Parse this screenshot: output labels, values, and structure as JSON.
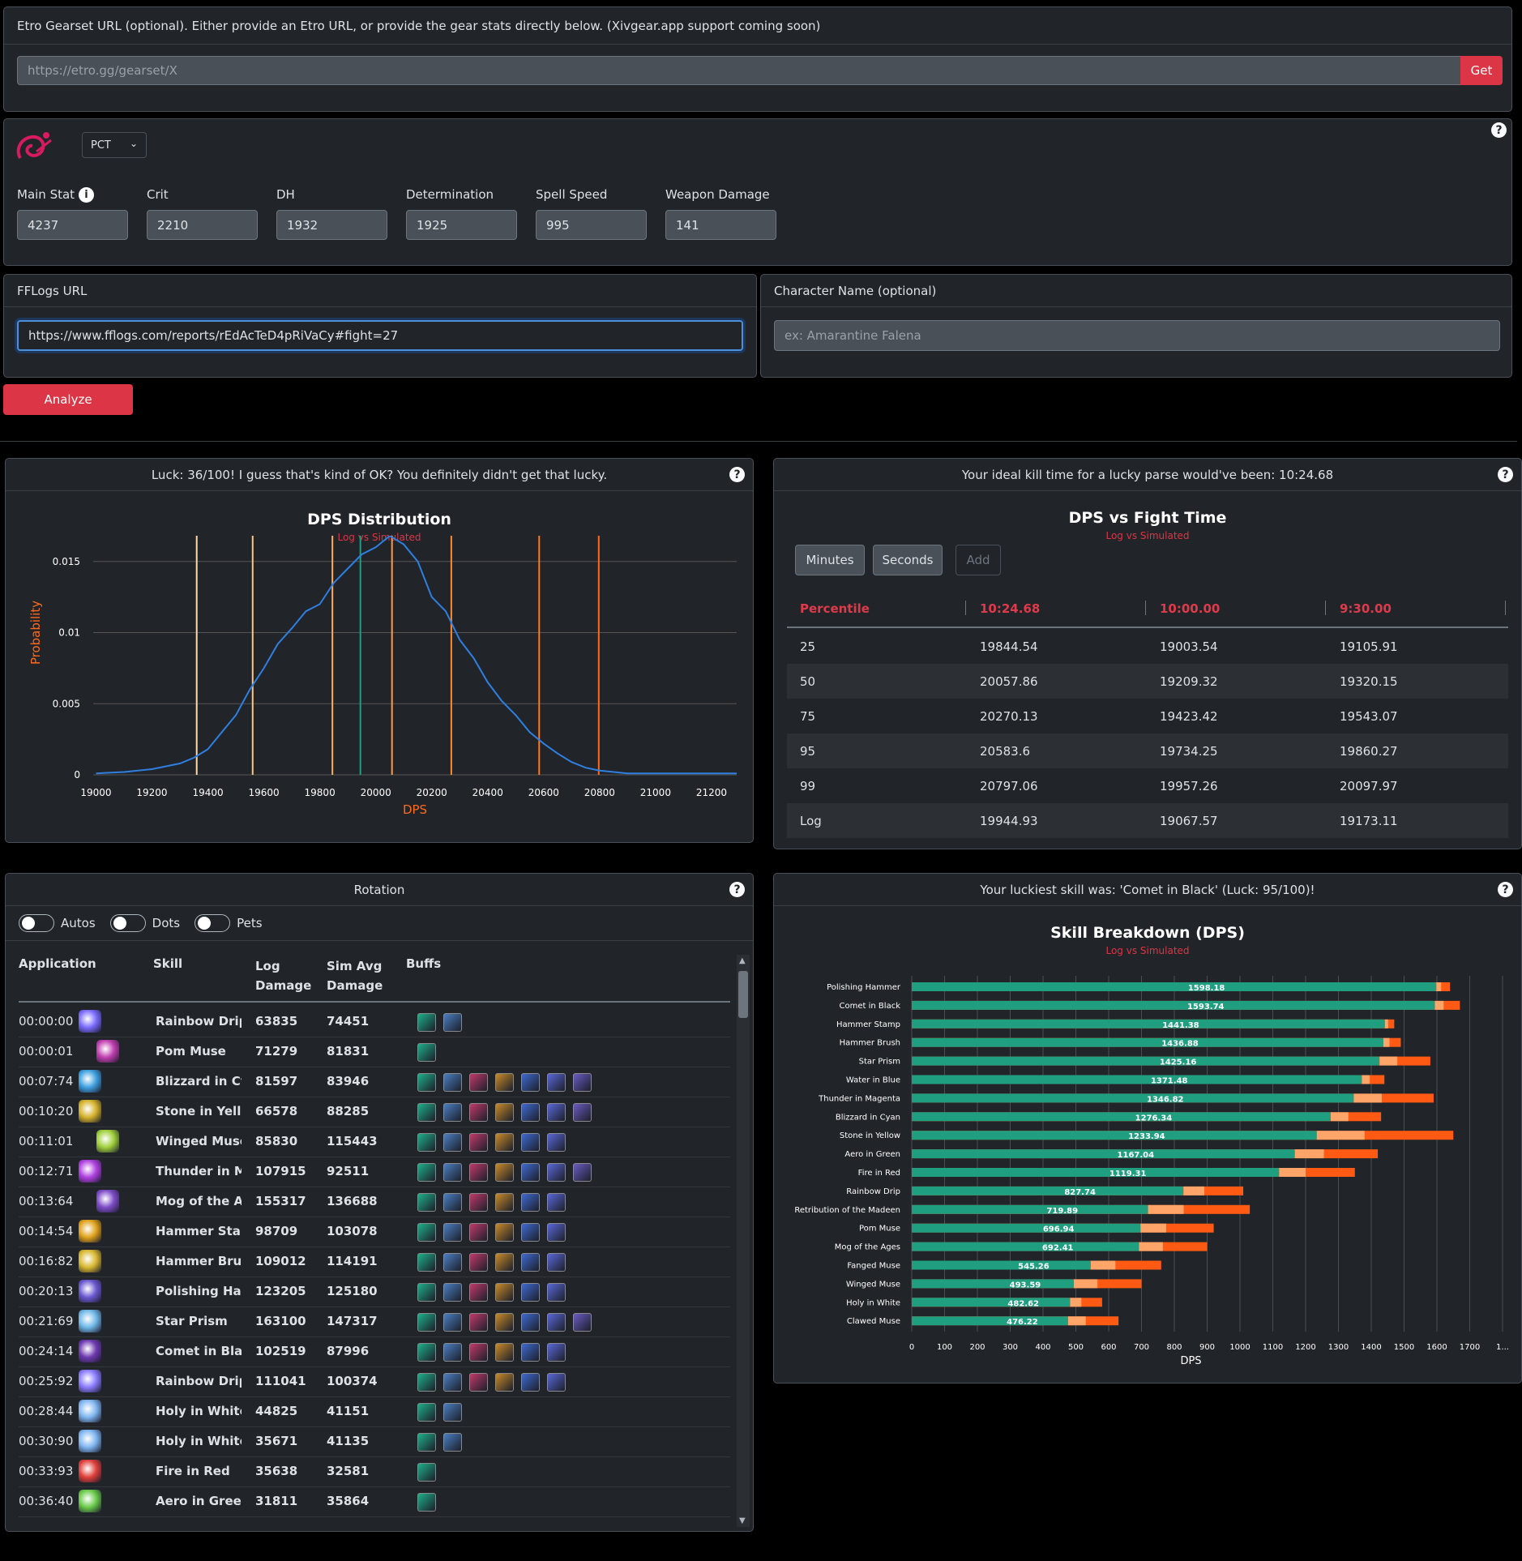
{
  "etro": {
    "label": "Etro Gearset URL (optional). Either provide an Etro URL, or provide the gear stats directly below. (Xivgear.app support coming soon)",
    "placeholder": "https://etro.gg/gearset/X",
    "get_label": "Get"
  },
  "stats": {
    "job": "PCT",
    "fields": [
      {
        "label": "Main Stat",
        "value": "4237"
      },
      {
        "label": "Crit",
        "value": "2210"
      },
      {
        "label": "DH",
        "value": "1932"
      },
      {
        "label": "Determination",
        "value": "1925"
      },
      {
        "label": "Spell Speed",
        "value": "995"
      },
      {
        "label": "Weapon Damage",
        "value": "141"
      }
    ]
  },
  "fflogs": {
    "label": "FFLogs URL",
    "value": "https://www.fflogs.com/reports/rEdAcTeD4pRiVaCy#fight=27"
  },
  "character": {
    "label": "Character Name (optional)",
    "placeholder": "ex: Amarantine Falena"
  },
  "analyze_label": "Analyze",
  "luck_panel": {
    "header": "Luck: 36/100! I guess that's kind of OK? You definitely didn't get that lucky."
  },
  "killtime_panel": {
    "header": "Your ideal kill time for a lucky parse would've been: 10:24.68",
    "title": "DPS vs Fight Time",
    "subtitle": "Log vs Simulated",
    "buttons": [
      "Minutes",
      "Seconds",
      "Add"
    ],
    "columns": [
      "Percentile",
      "10:24.68",
      "10:00.00",
      "9:30.00"
    ],
    "rows": [
      [
        "25",
        "19844.54",
        "19003.54",
        "19105.91"
      ],
      [
        "50",
        "20057.86",
        "19209.32",
        "19320.15"
      ],
      [
        "75",
        "20270.13",
        "19423.42",
        "19543.07"
      ],
      [
        "95",
        "20583.6",
        "19734.25",
        "19860.27"
      ],
      [
        "99",
        "20797.06",
        "19957.26",
        "20097.97"
      ],
      [
        "Log",
        "19944.93",
        "19067.57",
        "19173.11"
      ]
    ]
  },
  "rotation": {
    "header": "Rotation",
    "toggles": [
      "Autos",
      "Dots",
      "Pets"
    ],
    "columns": [
      "Application",
      "Skill",
      "Log Damage",
      "Sim Avg Damage",
      "Buffs"
    ],
    "rows": [
      {
        "time": "00:00:00",
        "skill": "Rainbow Drip",
        "log": "63835",
        "sim": "74451",
        "buffs": 2
      },
      {
        "time": "00:00:01",
        "skill": "Pom Muse",
        "log": "71279",
        "sim": "81831",
        "buffs": 1
      },
      {
        "time": "00:07:74",
        "skill": "Blizzard in Cya",
        "log": "81597",
        "sim": "83946",
        "buffs": 7
      },
      {
        "time": "00:10:20",
        "skill": "Stone in Yellov",
        "log": "66578",
        "sim": "88285",
        "buffs": 7
      },
      {
        "time": "00:11:01",
        "skill": "Winged Muse",
        "log": "85830",
        "sim": "115443",
        "buffs": 6
      },
      {
        "time": "00:12:71",
        "skill": "Thunder in Ma",
        "log": "107915",
        "sim": "92511",
        "buffs": 7
      },
      {
        "time": "00:13:64",
        "skill": "Mog of the Ag",
        "log": "155317",
        "sim": "136688",
        "buffs": 6
      },
      {
        "time": "00:14:54",
        "skill": "Hammer Stamp",
        "log": "98709",
        "sim": "103078",
        "buffs": 6
      },
      {
        "time": "00:16:82",
        "skill": "Hammer Brush",
        "log": "109012",
        "sim": "114191",
        "buffs": 6
      },
      {
        "time": "00:20:13",
        "skill": "Polishing Ham",
        "log": "123205",
        "sim": "125180",
        "buffs": 6
      },
      {
        "time": "00:21:69",
        "skill": "Star Prism",
        "log": "163100",
        "sim": "147317",
        "buffs": 7
      },
      {
        "time": "00:24:14",
        "skill": "Comet in Black",
        "log": "102519",
        "sim": "87996",
        "buffs": 6
      },
      {
        "time": "00:25:92",
        "skill": "Rainbow Drip",
        "log": "111041",
        "sim": "100374",
        "buffs": 6
      },
      {
        "time": "00:28:44",
        "skill": "Holy in White",
        "log": "44825",
        "sim": "41151",
        "buffs": 2
      },
      {
        "time": "00:30:90",
        "skill": "Holy in White",
        "log": "35671",
        "sim": "41135",
        "buffs": 2
      },
      {
        "time": "00:33:93",
        "skill": "Fire in Red",
        "log": "35638",
        "sim": "32581",
        "buffs": 1
      },
      {
        "time": "00:36:40",
        "skill": "Aero in Green",
        "log": "31811",
        "sim": "35864",
        "buffs": 1
      }
    ]
  },
  "skill_panel": {
    "header": "Your luckiest skill was: 'Comet in Black' (Luck: 95/100)!"
  },
  "colors": {
    "accent_red": "#dc3545",
    "teal": "#1f9e80",
    "orange": "#ff6a1a",
    "blue_line": "#2f7fe0"
  },
  "chart_data": [
    {
      "type": "line",
      "title": "DPS Distribution",
      "subtitle": "Log vs Simulated",
      "xlabel": "DPS",
      "ylabel": "Probability",
      "xlim": [
        18990,
        21290
      ],
      "ylim": [
        0,
        0.02
      ],
      "x_ticks": [
        19000,
        19200,
        19400,
        19600,
        19800,
        20000,
        20200,
        20400,
        20600,
        20800,
        21000,
        21200
      ],
      "y_ticks": [
        "0",
        "0.005",
        "0.01",
        "0.015",
        "0.02"
      ],
      "percentile_lines": [
        {
          "label": "1",
          "x": 19360
        },
        {
          "label": "5",
          "x": 19560
        },
        {
          "label": "25",
          "x": 19845
        },
        {
          "label": "50",
          "x": 20058
        },
        {
          "label": "75",
          "x": 20270
        },
        {
          "label": "95",
          "x": 20584
        },
        {
          "label": "99",
          "x": 20797
        }
      ],
      "log_line": {
        "label": "Log",
        "x": 19945
      },
      "series": [
        {
          "x": [
            19000,
            19100,
            19200,
            19300,
            19350,
            19400,
            19450,
            19500,
            19550,
            19600,
            19650,
            19700,
            19750,
            19800,
            19850,
            19900,
            19950,
            20000,
            20050,
            20100,
            20150,
            20200,
            20250,
            20300,
            20350,
            20400,
            20450,
            20500,
            20550,
            20600,
            20650,
            20700,
            20750,
            20800,
            20850,
            20900,
            21000,
            21100,
            21200,
            21290
          ],
          "values": [
            0.0001,
            0.0002,
            0.0004,
            0.0008,
            0.0012,
            0.0018,
            0.003,
            0.0042,
            0.006,
            0.0075,
            0.0092,
            0.0103,
            0.0115,
            0.012,
            0.0135,
            0.0145,
            0.0155,
            0.016,
            0.0168,
            0.0162,
            0.015,
            0.0125,
            0.0115,
            0.0095,
            0.0082,
            0.0065,
            0.0052,
            0.0042,
            0.003,
            0.0022,
            0.0015,
            0.0009,
            0.0005,
            0.0003,
            0.0002,
            0.0001,
            0.0001,
            0.0001,
            0.0001,
            0.0001
          ]
        }
      ]
    },
    {
      "type": "bar",
      "title": "Skill Breakdown (DPS)",
      "subtitle": "Log vs Simulated",
      "xlabel": "DPS",
      "xlim": [
        0,
        1800
      ],
      "x_ticks": [
        "0",
        "100",
        "200",
        "300",
        "400",
        "500",
        "600",
        "700",
        "800",
        "900",
        "1000",
        "1100",
        "1200",
        "1300",
        "1400",
        "1500",
        "1600",
        "1700",
        "1..."
      ],
      "categories": [
        "Polishing Hammer",
        "Comet in Black",
        "Hammer Stamp",
        "Hammer Brush",
        "Star Prism",
        "Water in Blue",
        "Thunder in Magenta",
        "Blizzard in Cyan",
        "Stone in Yellow",
        "Aero in Green",
        "Fire in Red",
        "Rainbow Drip",
        "Retribution of the Madeen",
        "Pom Muse",
        "Mog of the Ages",
        "Fanged Muse",
        "Winged Muse",
        "Holy in White",
        "Clawed Muse"
      ],
      "series": [
        {
          "values": [
            1598.18,
            1593.74,
            1441.38,
            1436.88,
            1425.16,
            1371.48,
            1346.82,
            1276.34,
            1233.94,
            1167.04,
            1119.31,
            827.74,
            719.89,
            696.94,
            692.41,
            545.26,
            493.59,
            482.62,
            476.22
          ]
        },
        {
          "values": [
            1640,
            1670,
            1470,
            1490,
            1580,
            1440,
            1590,
            1430,
            1650,
            1420,
            1350,
            1010,
            1030,
            920,
            900,
            760,
            700,
            580,
            630
          ]
        }
      ]
    }
  ]
}
